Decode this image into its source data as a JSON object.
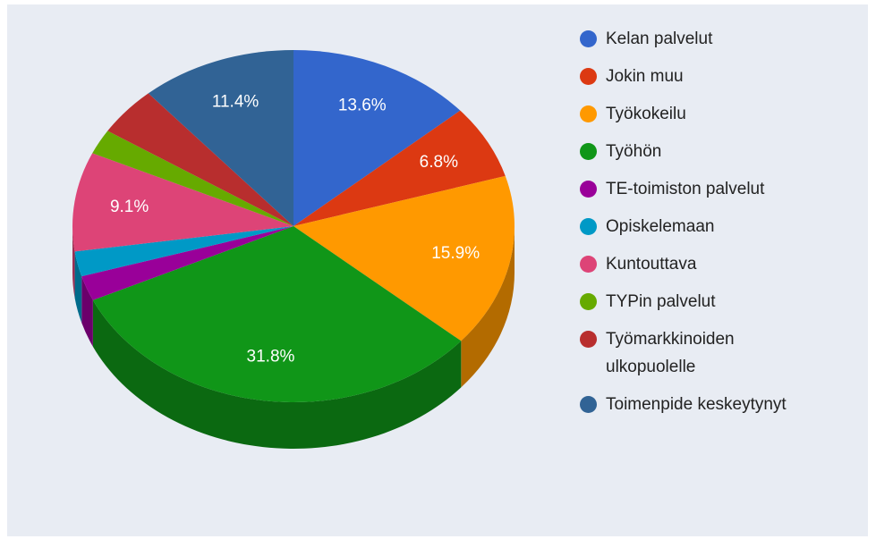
{
  "chart_data": {
    "type": "pie3d",
    "categories": [
      "Kelan palvelut",
      "Jokin muu",
      "Työkokeilu",
      "Työhön",
      "TE-toimiston palvelut",
      "Opiskelemaan",
      "Kuntouttava",
      "TYPin palvelut",
      "Työmarkkinoiden ulkopuolelle",
      "Toimenpide keskeytynyt"
    ],
    "values": [
      13.6,
      6.8,
      15.9,
      31.8,
      2.3,
      2.3,
      9.1,
      2.3,
      4.5,
      11.4
    ],
    "value_labels": [
      "13.6%",
      "6.8%",
      "15.9%",
      "31.8%",
      null,
      null,
      "9.1%",
      null,
      null,
      "11.4%"
    ],
    "colors": [
      "#3366cc",
      "#dc3912",
      "#ff9900",
      "#109618",
      "#990099",
      "#0099c6",
      "#dd4477",
      "#66aa00",
      "#b82e2e",
      "#316395"
    ],
    "legend": "right"
  }
}
